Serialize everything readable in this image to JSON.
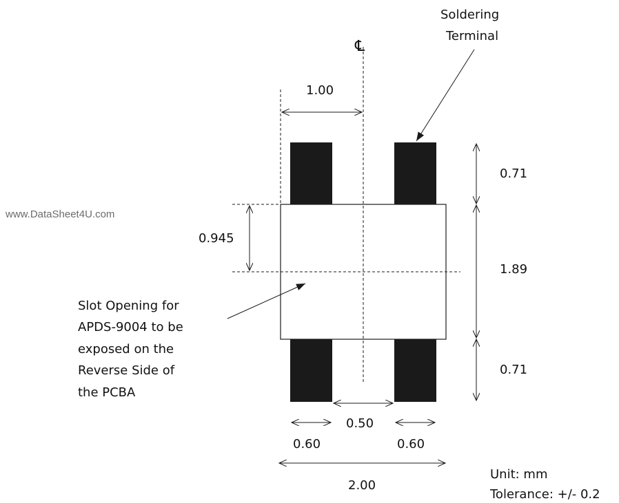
{
  "watermark": "www.DataSheet4U.com",
  "centerline_symbol": "℄",
  "callouts": {
    "soldering_terminal": [
      "Soldering",
      "Terminal"
    ],
    "slot_opening": [
      "Slot Opening for",
      "APDS-9004 to be",
      "exposed on the",
      "Reverse Side of",
      "the PCBA"
    ]
  },
  "dimensions": {
    "pad_to_centerline": "1.00",
    "pad_height_top": "0.71",
    "slot_height": "1.89",
    "pad_height_bottom": "0.71",
    "half_slot_height": "0.945",
    "pad_gap": "0.50",
    "pad_width_left": "0.60",
    "pad_width_right": "0.60",
    "overall_width": "2.00"
  },
  "notes": {
    "unit": "Unit: mm",
    "tolerance": "Tolerance: +/- 0.2"
  }
}
